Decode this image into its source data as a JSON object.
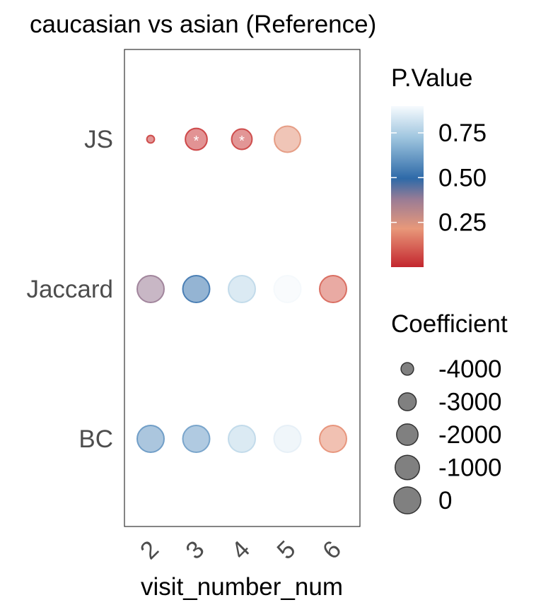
{
  "chart_data": {
    "type": "scatter",
    "title": "caucasian vs asian (Reference)",
    "xlabel": "visit_number_num",
    "ylabel": "",
    "x_categories": [
      "2",
      "3",
      "4",
      "5",
      "6"
    ],
    "y_categories": [
      "JS",
      "Jaccard",
      "BC"
    ],
    "points": [
      {
        "x": "2",
        "y": "JS",
        "p_value": 0.05,
        "coefficient": -4400,
        "significant": false
      },
      {
        "x": "3",
        "y": "JS",
        "p_value": 0.04,
        "coefficient": -1800,
        "significant": true
      },
      {
        "x": "4",
        "y": "JS",
        "p_value": 0.05,
        "coefficient": -2200,
        "significant": true
      },
      {
        "x": "5",
        "y": "JS",
        "p_value": 0.23,
        "coefficient": -300,
        "significant": false
      },
      {
        "x": "2",
        "y": "Jaccard",
        "p_value": 0.38,
        "coefficient": 0,
        "significant": false
      },
      {
        "x": "3",
        "y": "Jaccard",
        "p_value": 0.55,
        "coefficient": 0,
        "significant": false
      },
      {
        "x": "4",
        "y": "Jaccard",
        "p_value": 0.8,
        "coefficient": 0,
        "significant": false
      },
      {
        "x": "5",
        "y": "Jaccard",
        "p_value": 0.9,
        "coefficient": 0,
        "significant": false
      },
      {
        "x": "6",
        "y": "Jaccard",
        "p_value": 0.12,
        "coefficient": 0,
        "significant": false
      },
      {
        "x": "2",
        "y": "BC",
        "p_value": 0.63,
        "coefficient": 0,
        "significant": false
      },
      {
        "x": "3",
        "y": "BC",
        "p_value": 0.65,
        "coefficient": 0,
        "significant": false
      },
      {
        "x": "4",
        "y": "BC",
        "p_value": 0.8,
        "coefficient": 0,
        "significant": false
      },
      {
        "x": "5",
        "y": "BC",
        "p_value": 0.87,
        "coefficient": 0,
        "significant": false
      },
      {
        "x": "6",
        "y": "BC",
        "p_value": 0.2,
        "coefficient": 0,
        "significant": false
      }
    ],
    "significance_marker": "*",
    "color_legend": {
      "title": "P.Value",
      "ticks": [
        0.25,
        0.5,
        0.75
      ],
      "tick_labels": [
        "0.25",
        "0.50",
        "0.75"
      ],
      "range": [
        0.0,
        0.9
      ],
      "colors": {
        "low": "#c3262e",
        "mid_low": "#e8987a",
        "mid": "#2e6aa8",
        "mid_high": "#9dc4de",
        "high": "#f7fbfe"
      }
    },
    "size_legend": {
      "title": "Coefficient",
      "values": [
        -4000,
        -3000,
        -2000,
        -1000,
        0
      ],
      "labels": [
        "-4000",
        "-3000",
        "-2000",
        "-1000",
        "0"
      ],
      "range": [
        -4500,
        0
      ]
    },
    "grid": false,
    "legend_position": "right"
  }
}
